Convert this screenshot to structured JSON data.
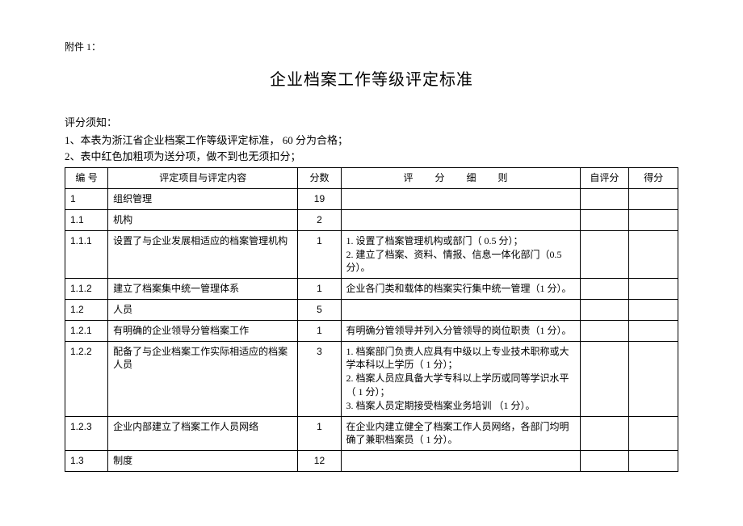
{
  "attachment_label": "附件 1：",
  "title": "企业档案工作等级评定标准",
  "notice": {
    "heading": "评分须知：",
    "line1": "1、本表为浙江省企业档案工作等级评定标准，    60 分为合格；",
    "line2": "2、表中红色加粗项为送分项，做不到也无须扣分；"
  },
  "headers": {
    "id": "编 号",
    "desc": "评定项目与评定内容",
    "score": "分数",
    "rule": "评 分 细 则",
    "self": "自评分",
    "final": "得分"
  },
  "rows": [
    {
      "id": "1",
      "desc": "组织管理",
      "score": "19",
      "rule": "",
      "self": "",
      "final": ""
    },
    {
      "id": "1.1",
      "desc": "机构",
      "score": "2",
      "rule": "",
      "self": "",
      "final": ""
    },
    {
      "id": "1.1.1",
      "desc": "设置了与企业发展相适应的档案管理机构",
      "score": "1",
      "rule": "1. 设置了档案管理机构或部门（  0.5 分）；\n2. 建立了档案、资料、情报、信息一体化部门（0.5 分）。",
      "self": "",
      "final": ""
    },
    {
      "id": "1.1.2",
      "desc": "建立了档案集中统一管理体系",
      "score": "1",
      "rule": "企业各门类和载体的档案实行集中统一管理（1 分）。",
      "self": "",
      "final": ""
    },
    {
      "id": "1.2",
      "desc": "人员",
      "score": "5",
      "rule": "",
      "self": "",
      "final": ""
    },
    {
      "id": "1.2.1",
      "desc": "有明确的企业领导分管档案工作",
      "score": "1",
      "rule": "有明确分管领导并列入分管领导的岗位职责（1 分）。",
      "self": "",
      "final": ""
    },
    {
      "id": "1.2.2",
      "desc": "配备了与企业档案工作实际相适应的档案人员",
      "score": "3",
      "rule": "1. 档案部门负责人应具有中级以上专业技术职称或大学本科以上学历（  1 分）；\n2. 档案人员应具备大学专科以上学历或同等学识水平（ 1 分）；\n3. 档案人员定期接受档案业务培训   （1 分）。",
      "self": "",
      "final": ""
    },
    {
      "id": "1.2.3",
      "desc": "企业内部建立了档案工作人员网络",
      "score": "1",
      "rule": "在企业内建立健全了档案工作人员网络，各部门均明确了兼职档案员（  1 分）。",
      "self": "",
      "final": ""
    },
    {
      "id": "1.3",
      "desc": "制度",
      "score": "12",
      "rule": "",
      "self": "",
      "final": ""
    }
  ]
}
